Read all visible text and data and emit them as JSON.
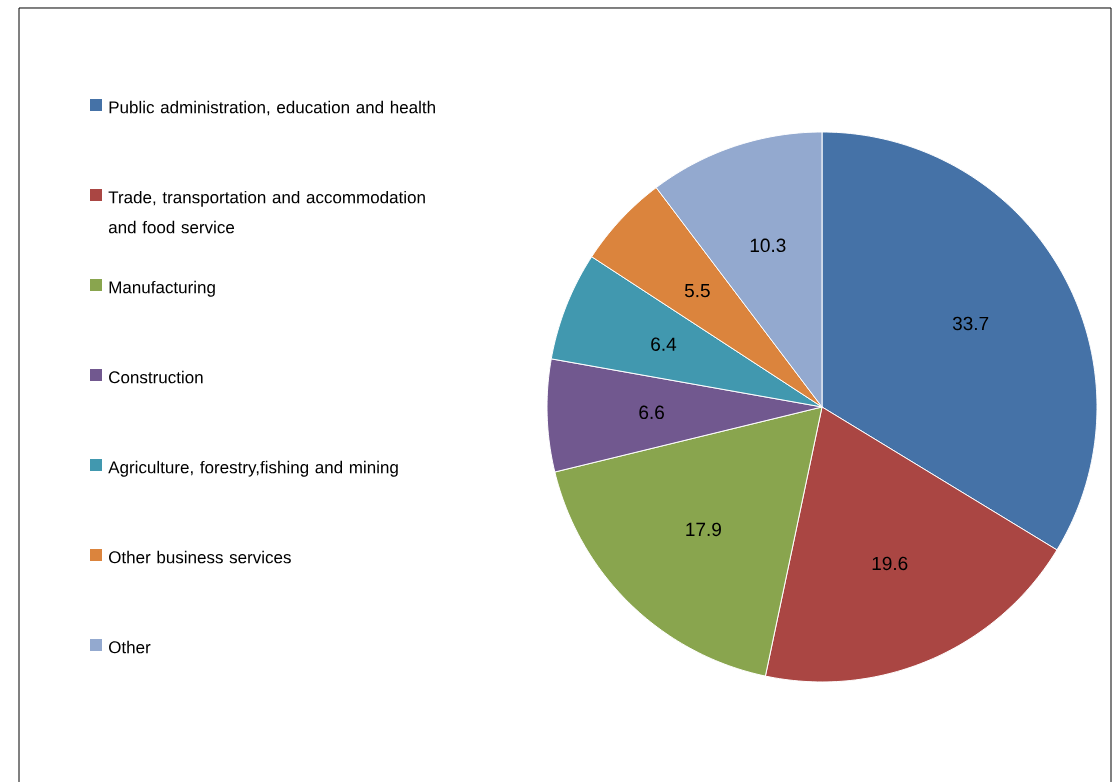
{
  "chart_data": {
    "type": "pie",
    "categories": [
      "Public administration, education and health",
      "Trade, transportation and accommodation and food service",
      "Manufacturing",
      "Construction",
      "Agriculture, forestry,fishing and mining",
      "Other business services",
      "Other"
    ],
    "values": [
      33.7,
      19.6,
      17.9,
      6.6,
      6.4,
      5.5,
      10.3
    ],
    "colors": [
      "#4572a7",
      "#aa4643",
      "#89a54e",
      "#71588f",
      "#4198af",
      "#db843d",
      "#93a9cf"
    ],
    "data_labels": true,
    "legend": "left"
  }
}
